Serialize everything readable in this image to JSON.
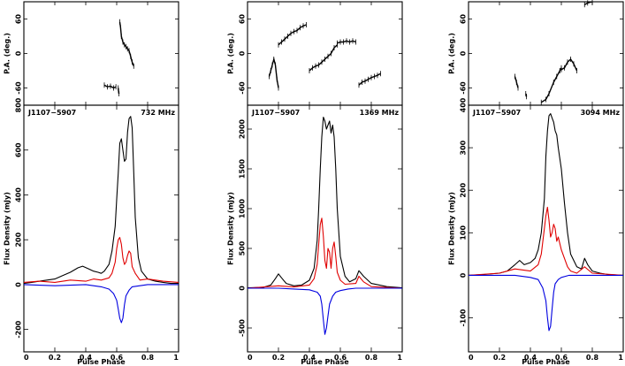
{
  "chart_data": [
    {
      "type": "line",
      "pulsar": "J1107−5907",
      "frequency_label": "732 MHz",
      "xlabel": "Pulse Phase",
      "pa_label": "P.A. (deg.)",
      "flux_label": "Flux Density (mJy)",
      "xlim": [
        0,
        1
      ],
      "pa_ylim": [
        -90,
        90
      ],
      "pa_yticks": [
        -60,
        0,
        60
      ],
      "flux_ylim": [
        -300,
        800
      ],
      "flux_yticks": [
        -200,
        0,
        200,
        400,
        600,
        800
      ],
      "xticks": [
        0,
        0.2,
        0.4,
        0.6,
        0.8,
        1
      ],
      "xtick_labels": [
        "0",
        "0.2",
        "0.4",
        "0.6",
        "0.8",
        "1"
      ],
      "series": [
        {
          "key": "total",
          "color": "#000000",
          "x": [
            0,
            0.05,
            0.1,
            0.15,
            0.2,
            0.25,
            0.3,
            0.35,
            0.38,
            0.42,
            0.45,
            0.48,
            0.5,
            0.52,
            0.55,
            0.57,
            0.59,
            0.6,
            0.61,
            0.62,
            0.63,
            0.64,
            0.65,
            0.66,
            0.67,
            0.68,
            0.69,
            0.7,
            0.71,
            0.72,
            0.74,
            0.76,
            0.8,
            0.85,
            0.9,
            0.95,
            1
          ],
          "y": [
            5,
            10,
            15,
            20,
            25,
            40,
            55,
            75,
            82,
            70,
            60,
            55,
            50,
            60,
            90,
            150,
            260,
            380,
            500,
            630,
            650,
            600,
            550,
            560,
            680,
            740,
            750,
            700,
            500,
            300,
            120,
            60,
            25,
            15,
            10,
            5,
            5
          ]
        },
        {
          "key": "linear",
          "color": "#e00000",
          "x": [
            0,
            0.1,
            0.2,
            0.3,
            0.4,
            0.45,
            0.5,
            0.55,
            0.57,
            0.59,
            0.6,
            0.61,
            0.62,
            0.63,
            0.64,
            0.65,
            0.66,
            0.67,
            0.68,
            0.69,
            0.7,
            0.72,
            0.75,
            0.8,
            0.9,
            1
          ],
          "y": [
            10,
            15,
            10,
            20,
            15,
            25,
            20,
            30,
            50,
            100,
            160,
            200,
            210,
            180,
            120,
            90,
            100,
            130,
            150,
            140,
            80,
            50,
            20,
            25,
            15,
            10
          ]
        },
        {
          "key": "circular",
          "color": "#0000e0",
          "x": [
            0,
            0.2,
            0.4,
            0.5,
            0.55,
            0.58,
            0.6,
            0.61,
            0.62,
            0.63,
            0.64,
            0.65,
            0.66,
            0.68,
            0.7,
            0.75,
            0.8,
            1
          ],
          "y": [
            0,
            -5,
            0,
            -10,
            -20,
            -40,
            -70,
            -110,
            -150,
            -170,
            -150,
            -90,
            -50,
            -25,
            -10,
            -5,
            0,
            0
          ]
        }
      ],
      "pa_segments": [
        {
          "x": [
            0.52,
            0.54,
            0.56,
            0.58,
            0.595
          ],
          "y": [
            -55,
            -58,
            -57,
            -60,
            -58
          ]
        },
        {
          "x": [
            0.62,
            0.625,
            0.63,
            0.64,
            0.65,
            0.66,
            0.67,
            0.68,
            0.69,
            0.7,
            0.71
          ],
          "y": [
            55,
            45,
            30,
            20,
            15,
            12,
            8,
            5,
            -5,
            -15,
            -22
          ]
        },
        {
          "x": [
            0.61,
            0.612,
            0.615
          ],
          "y": [
            -60,
            -65,
            -70
          ]
        }
      ]
    },
    {
      "type": "line",
      "pulsar": "J1107−5907",
      "frequency_label": "1369 MHz",
      "xlabel": "Pulse Phase",
      "pa_label": "P.A. (deg.)",
      "flux_label": "Flux Density (mJy)",
      "xlim": [
        0,
        1
      ],
      "pa_ylim": [
        -90,
        90
      ],
      "pa_yticks": [
        -60,
        0,
        60
      ],
      "flux_ylim": [
        -800,
        2300
      ],
      "flux_yticks": [
        -500,
        0,
        500,
        1000,
        1500,
        2000
      ],
      "xticks": [
        0,
        0.2,
        0.4,
        0.6,
        0.8,
        1
      ],
      "xtick_labels": [
        "0",
        "0.2",
        "0.4",
        "0.6",
        "0.8",
        "1"
      ],
      "series": [
        {
          "key": "total",
          "color": "#000000",
          "x": [
            0,
            0.1,
            0.15,
            0.18,
            0.2,
            0.22,
            0.25,
            0.3,
            0.35,
            0.4,
            0.43,
            0.45,
            0.46,
            0.47,
            0.48,
            0.49,
            0.5,
            0.51,
            0.52,
            0.53,
            0.54,
            0.55,
            0.56,
            0.57,
            0.58,
            0.6,
            0.63,
            0.66,
            0.7,
            0.72,
            0.75,
            0.8,
            0.9,
            1
          ],
          "y": [
            5,
            10,
            40,
            120,
            180,
            130,
            60,
            30,
            40,
            100,
            250,
            600,
            1000,
            1500,
            1900,
            2150,
            2100,
            2000,
            2050,
            2100,
            1950,
            2050,
            1900,
            1500,
            1000,
            400,
            150,
            80,
            120,
            220,
            150,
            60,
            20,
            5
          ]
        },
        {
          "key": "linear",
          "color": "#e00000",
          "x": [
            0,
            0.2,
            0.3,
            0.4,
            0.43,
            0.45,
            0.46,
            0.47,
            0.48,
            0.49,
            0.5,
            0.51,
            0.52,
            0.53,
            0.54,
            0.55,
            0.56,
            0.57,
            0.58,
            0.6,
            0.63,
            0.7,
            0.72,
            0.75,
            0.8,
            1
          ],
          "y": [
            0,
            30,
            15,
            40,
            120,
            300,
            550,
            800,
            880,
            650,
            350,
            250,
            500,
            450,
            250,
            500,
            580,
            400,
            200,
            100,
            50,
            60,
            150,
            80,
            20,
            0
          ]
        },
        {
          "key": "circular",
          "color": "#0000e0",
          "x": [
            0,
            0.2,
            0.3,
            0.4,
            0.45,
            0.47,
            0.48,
            0.49,
            0.5,
            0.51,
            0.52,
            0.53,
            0.55,
            0.57,
            0.6,
            0.65,
            0.7,
            1
          ],
          "y": [
            0,
            0,
            -10,
            -20,
            -50,
            -100,
            -200,
            -400,
            -580,
            -500,
            -350,
            -200,
            -100,
            -50,
            -30,
            -10,
            0,
            0
          ]
        }
      ],
      "pa_segments": [
        {
          "x": [
            0.14,
            0.15,
            0.16,
            0.17,
            0.18,
            0.19,
            0.2
          ],
          "y": [
            -40,
            -30,
            -20,
            -10,
            -20,
            -45,
            -60
          ]
        },
        {
          "x": [
            0.2,
            0.22,
            0.24,
            0.26,
            0.28,
            0.3,
            0.32,
            0.34,
            0.36,
            0.38
          ],
          "y": [
            15,
            20,
            25,
            30,
            35,
            38,
            40,
            45,
            48,
            50
          ]
        },
        {
          "x": [
            0.4,
            0.42,
            0.44,
            0.46,
            0.48,
            0.5,
            0.52,
            0.54,
            0.56,
            0.58
          ],
          "y": [
            -30,
            -25,
            -22,
            -20,
            -15,
            -10,
            -5,
            0,
            10,
            15
          ]
        },
        {
          "x": [
            0.58,
            0.6,
            0.62,
            0.64,
            0.66,
            0.68,
            0.7
          ],
          "y": [
            18,
            20,
            20,
            22,
            20,
            22,
            20
          ]
        },
        {
          "x": [
            0.72,
            0.74,
            0.76,
            0.78,
            0.8,
            0.82,
            0.84,
            0.86
          ],
          "y": [
            -55,
            -50,
            -48,
            -45,
            -42,
            -40,
            -38,
            -35
          ]
        }
      ]
    },
    {
      "type": "line",
      "pulsar": "J1107−5907",
      "frequency_label": "3094 MHz",
      "xlabel": "Pulse Phase",
      "pa_label": "P.A. (deg.)",
      "flux_label": "Flux Density (mJy)",
      "xlim": [
        0,
        1
      ],
      "pa_ylim": [
        -90,
        90
      ],
      "pa_yticks": [
        -60,
        0,
        60
      ],
      "flux_ylim": [
        -180,
        400
      ],
      "flux_yticks": [
        -100,
        0,
        100,
        200,
        300,
        400
      ],
      "xticks": [
        0,
        0.2,
        0.4,
        0.6,
        0.8,
        1
      ],
      "xtick_labels": [
        "0",
        "0.2",
        "0.4",
        "0.6",
        "0.8",
        "1"
      ],
      "series": [
        {
          "key": "total",
          "color": "#000000",
          "x": [
            0,
            0.1,
            0.2,
            0.25,
            0.3,
            0.33,
            0.36,
            0.4,
            0.43,
            0.45,
            0.47,
            0.49,
            0.5,
            0.51,
            0.52,
            0.53,
            0.54,
            0.55,
            0.56,
            0.57,
            0.58,
            0.6,
            0.62,
            0.64,
            0.66,
            0.7,
            0.73,
            0.75,
            0.77,
            0.8,
            0.85,
            0.9,
            1
          ],
          "y": [
            0,
            2,
            5,
            10,
            25,
            35,
            25,
            30,
            40,
            60,
            100,
            180,
            280,
            340,
            375,
            380,
            370,
            360,
            340,
            330,
            300,
            250,
            170,
            100,
            50,
            20,
            15,
            40,
            25,
            10,
            5,
            2,
            0
          ]
        },
        {
          "key": "linear",
          "color": "#e00000",
          "x": [
            0,
            0.2,
            0.3,
            0.4,
            0.45,
            0.47,
            0.49,
            0.5,
            0.51,
            0.52,
            0.53,
            0.54,
            0.55,
            0.56,
            0.57,
            0.58,
            0.6,
            0.62,
            0.64,
            0.66,
            0.7,
            0.75,
            0.8,
            1
          ],
          "y": [
            0,
            5,
            15,
            10,
            25,
            50,
            110,
            140,
            160,
            130,
            90,
            100,
            120,
            110,
            80,
            90,
            60,
            40,
            20,
            10,
            5,
            20,
            5,
            0
          ]
        },
        {
          "key": "circular",
          "color": "#0000e0",
          "x": [
            0,
            0.3,
            0.4,
            0.45,
            0.48,
            0.5,
            0.51,
            0.52,
            0.53,
            0.54,
            0.55,
            0.56,
            0.58,
            0.6,
            0.65,
            1
          ],
          "y": [
            0,
            0,
            -5,
            -10,
            -30,
            -60,
            -100,
            -130,
            -120,
            -80,
            -40,
            -20,
            -10,
            -5,
            0,
            0
          ]
        }
      ],
      "pa_segments": [
        {
          "x": [
            0.3,
            0.31,
            0.32
          ],
          "y": [
            -40,
            -50,
            -60
          ]
        },
        {
          "x": [
            0.37,
            0.375
          ],
          "y": [
            -70,
            -75
          ]
        },
        {
          "x": [
            0.47,
            0.5,
            0.52,
            0.55,
            0.57,
            0.59,
            0.6
          ],
          "y": [
            -85,
            -80,
            -70,
            -50,
            -40,
            -30,
            -25
          ]
        },
        {
          "x": [
            0.6,
            0.62,
            0.64,
            0.66,
            0.68,
            0.7
          ],
          "y": [
            -28,
            -25,
            -15,
            -10,
            -18,
            -30
          ]
        },
        {
          "x": [
            0.75,
            0.77,
            0.8
          ],
          "y": [
            85,
            88,
            90
          ]
        }
      ]
    }
  ]
}
